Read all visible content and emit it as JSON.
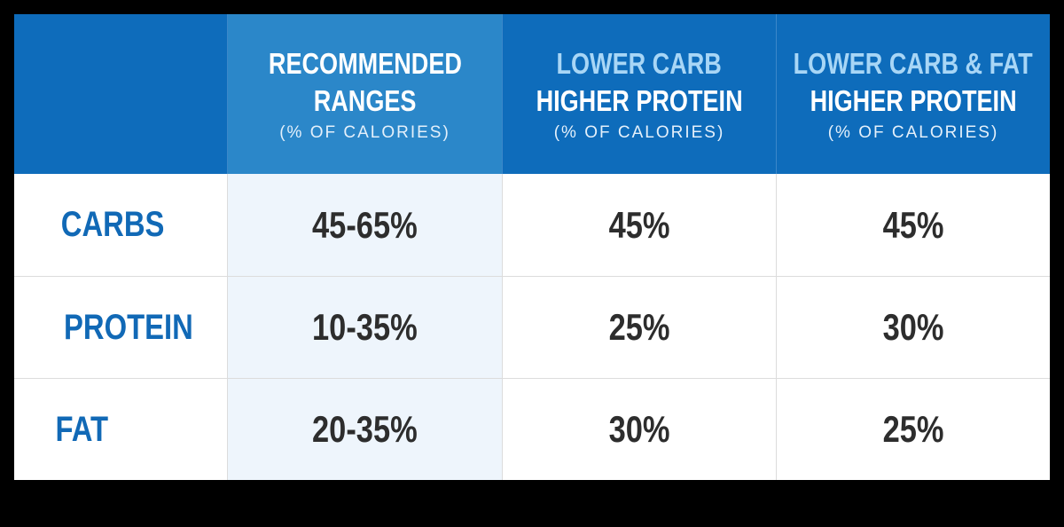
{
  "table": {
    "header": [
      {
        "lines": [
          "RECOMMENDED",
          "RANGES"
        ],
        "note": "(% OF CALORIES)"
      },
      {
        "lines": [
          "LOWER CARB",
          "HIGHER PROTEIN"
        ],
        "note": "(% OF CALORIES)"
      },
      {
        "lines": [
          "LOWER CARB & FAT",
          "HIGHER PROTEIN"
        ],
        "note": "(% OF CALORIES)"
      }
    ],
    "rows": [
      {
        "label": "CARBS",
        "cells": [
          "45-65%",
          "45%",
          "45%"
        ]
      },
      {
        "label": "PROTEIN",
        "cells": [
          "10-35%",
          "25%",
          "30%"
        ]
      },
      {
        "label": "FAT",
        "cells": [
          "20-35%",
          "30%",
          "25%"
        ]
      }
    ]
  }
}
